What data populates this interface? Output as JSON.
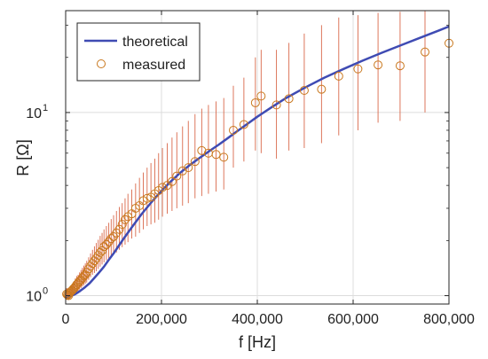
{
  "chart_data": {
    "type": "scatter",
    "xlabel": "f [Hz]",
    "ylabel": "R [Ω]",
    "xlim": [
      0,
      800000
    ],
    "ylim": [
      0.9,
      36
    ],
    "yscale": "log",
    "grid": true,
    "legend_position": "top-left",
    "x_ticks": [
      {
        "value": 0,
        "label": "0"
      },
      {
        "value": 200000,
        "label": "200,000"
      },
      {
        "value": 400000,
        "label": "400,000"
      },
      {
        "value": 600000,
        "label": "600,000"
      },
      {
        "value": 800000,
        "label": "800,000"
      }
    ],
    "y_ticks": [
      {
        "value": 1,
        "base": "10",
        "exp": "0"
      },
      {
        "value": 10,
        "base": "10",
        "exp": "1"
      }
    ],
    "series": [
      {
        "name": "theoretical",
        "kind": "line",
        "color": "#3f4bb3",
        "x": [
          0,
          10000,
          20000,
          30000,
          40000,
          50000,
          60000,
          70000,
          80000,
          90000,
          100000,
          120000,
          140000,
          160000,
          180000,
          200000,
          220000,
          240000,
          260000,
          280000,
          300000,
          320000,
          340000,
          360000,
          380000,
          400000,
          430000,
          460000,
          500000,
          540000,
          580000,
          620000,
          660000,
          700000,
          740000,
          780000,
          800000
        ],
        "y": [
          0.965,
          0.99,
          1.02,
          1.06,
          1.11,
          1.17,
          1.25,
          1.34,
          1.44,
          1.57,
          1.7,
          2.03,
          2.4,
          2.82,
          3.26,
          3.73,
          4.22,
          4.71,
          5.19,
          5.66,
          6.16,
          6.69,
          7.3,
          7.97,
          8.69,
          9.48,
          10.7,
          12.0,
          13.7,
          15.5,
          17.3,
          19.2,
          21.2,
          23.3,
          25.6,
          28.1,
          29.5
        ]
      },
      {
        "name": "measured",
        "kind": "scatter",
        "color": "#c9781e",
        "error_color": "#d9684a",
        "x": [
          2000,
          4000,
          6000,
          8000,
          10000,
          12000,
          14000,
          16000,
          18000,
          20000,
          23000,
          26000,
          29000,
          32000,
          35000,
          38000,
          41000,
          44000,
          48000,
          52000,
          56000,
          60000,
          64000,
          68000,
          72000,
          76000,
          80000,
          85000,
          90000,
          95000,
          100000,
          106000,
          112000,
          118000,
          124000,
          130000,
          138000,
          146000,
          154000,
          162000,
          170000,
          178000,
          186000,
          194000,
          202000,
          212000,
          222000,
          232000,
          244000,
          256000,
          270000,
          284000,
          298000,
          314000,
          330000,
          350000,
          372000,
          396000,
          408000,
          440000,
          466000,
          498000,
          534000,
          570000,
          610000,
          652000,
          698000,
          750000,
          800000
        ],
        "y": [
          1.02,
          1.01,
          1.0,
          1.03,
          1.05,
          1.06,
          1.07,
          1.09,
          1.1,
          1.12,
          1.15,
          1.17,
          1.2,
          1.22,
          1.25,
          1.28,
          1.3,
          1.34,
          1.4,
          1.45,
          1.5,
          1.55,
          1.6,
          1.66,
          1.72,
          1.76,
          1.85,
          1.9,
          1.97,
          2.05,
          2.1,
          2.2,
          2.3,
          2.45,
          2.6,
          2.7,
          2.8,
          3.0,
          3.1,
          3.3,
          3.4,
          3.45,
          3.6,
          3.75,
          3.9,
          4.0,
          4.2,
          4.5,
          4.8,
          5.0,
          5.4,
          6.2,
          6.0,
          5.9,
          5.7,
          8.0,
          8.6,
          11.3,
          12.3,
          11.0,
          11.9,
          13.2,
          13.4,
          15.8,
          17.3,
          18.2,
          18.0,
          21.4,
          23.9
        ],
        "err_low": [
          0.95,
          0.95,
          0.95,
          0.96,
          0.97,
          0.98,
          0.99,
          1.0,
          1.0,
          1.02,
          1.04,
          1.06,
          1.08,
          1.1,
          1.12,
          1.14,
          1.16,
          1.18,
          1.22,
          1.26,
          1.3,
          1.33,
          1.36,
          1.4,
          1.44,
          1.48,
          1.52,
          1.56,
          1.6,
          1.64,
          1.68,
          1.72,
          1.78,
          1.84,
          1.9,
          1.96,
          2.05,
          2.1,
          2.2,
          2.3,
          2.4,
          2.45,
          2.5,
          2.6,
          2.7,
          2.8,
          2.9,
          3.0,
          3.1,
          3.2,
          3.4,
          3.5,
          3.6,
          3.7,
          3.8,
          5.0,
          5.4,
          6.2,
          6.0,
          5.6,
          6.2,
          6.4,
          6.8,
          7.5,
          8.0,
          8.8,
          9.0,
          10.0,
          11.8
        ],
        "err_high": [
          1.1,
          1.08,
          1.07,
          1.1,
          1.12,
          1.14,
          1.16,
          1.18,
          1.2,
          1.24,
          1.28,
          1.3,
          1.34,
          1.38,
          1.42,
          1.46,
          1.5,
          1.55,
          1.62,
          1.7,
          1.78,
          1.86,
          1.94,
          2.02,
          2.12,
          2.2,
          2.3,
          2.4,
          2.5,
          2.62,
          2.75,
          2.9,
          3.05,
          3.2,
          3.4,
          3.6,
          3.8,
          4.1,
          4.4,
          4.7,
          5.0,
          5.3,
          5.6,
          6.0,
          6.4,
          6.8,
          7.3,
          7.8,
          8.4,
          9.0,
          9.8,
          10.5,
          11.0,
          11.5,
          12.0,
          14.0,
          15.5,
          20.0,
          22.0,
          22.0,
          24.0,
          27.0,
          30.0,
          33.0,
          34.0,
          35.0,
          35.5,
          36.0,
          36.0
        ]
      }
    ]
  }
}
